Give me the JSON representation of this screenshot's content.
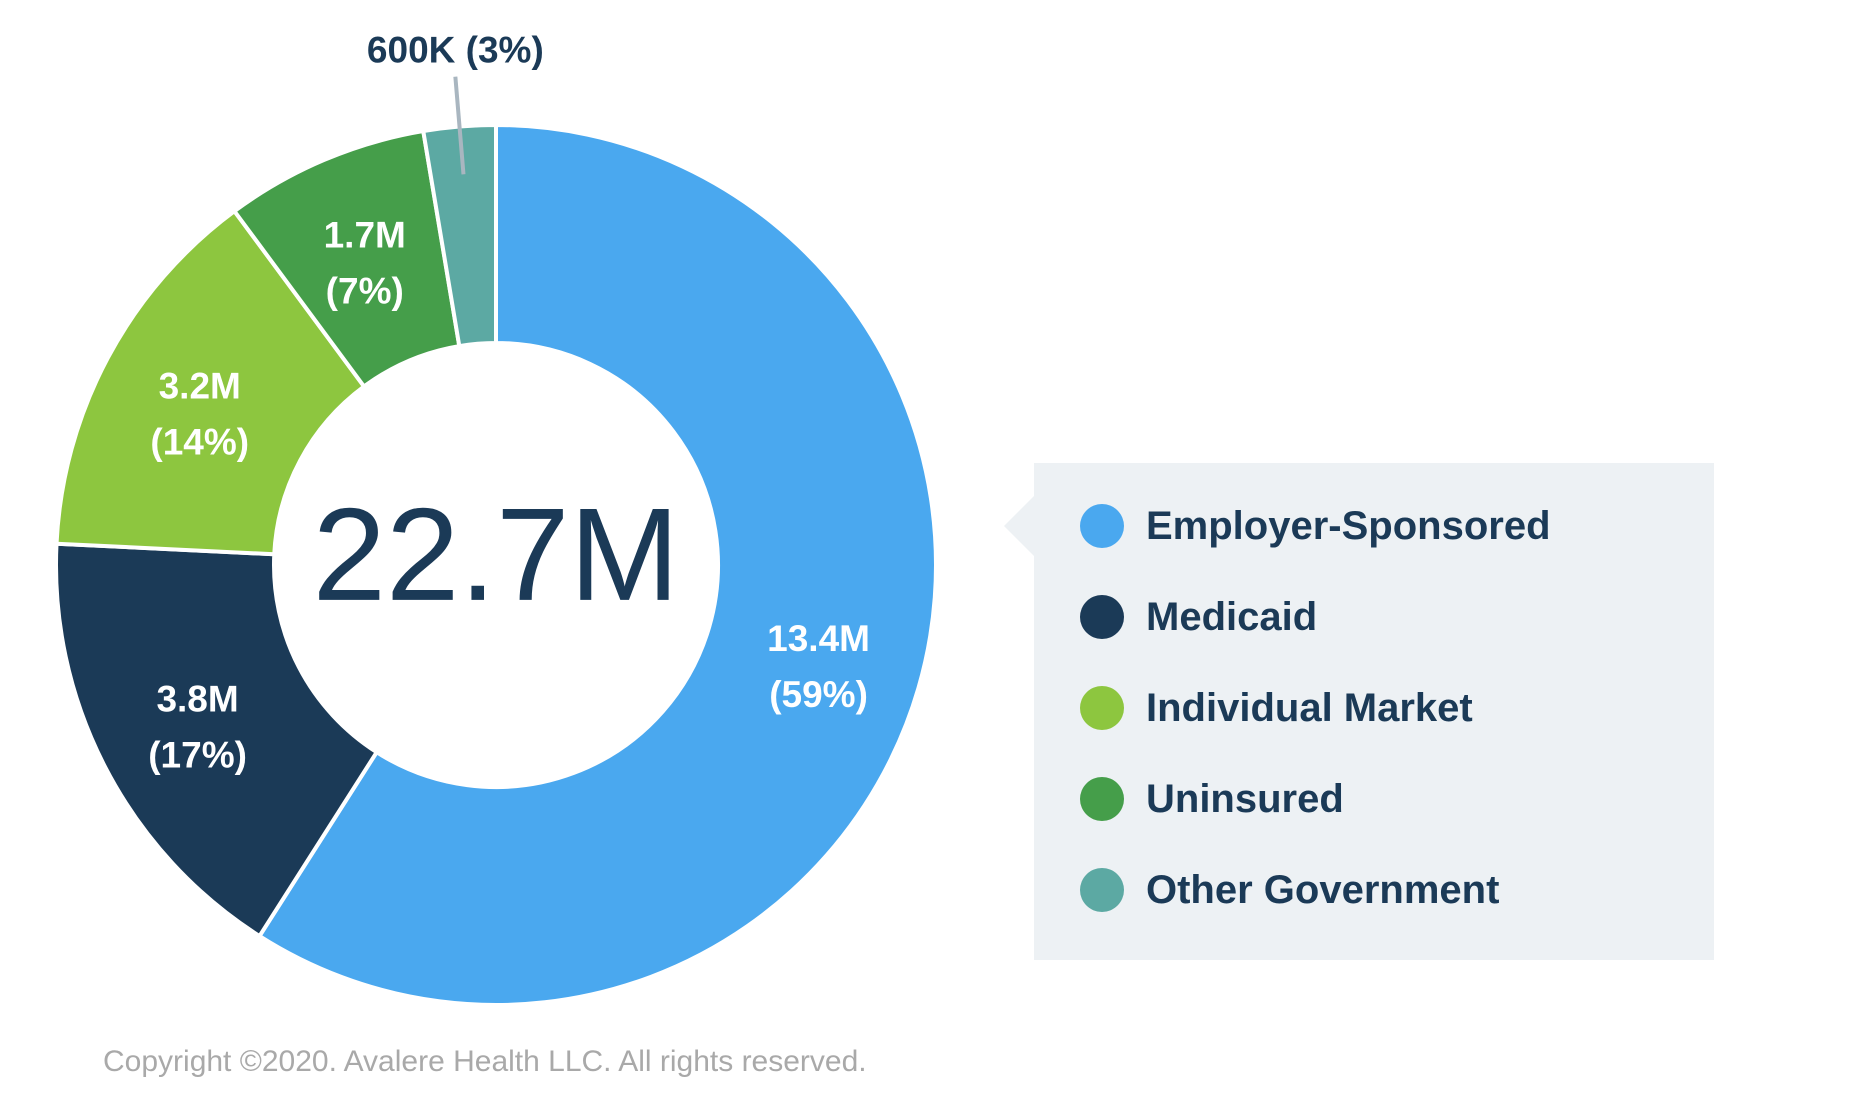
{
  "chart_data": {
    "type": "pie",
    "variant": "donut",
    "center_label": "22.7M",
    "slices": [
      {
        "name": "Employer-Sponsored",
        "value_label": "13.4M",
        "percent_label": "(59%)",
        "value": 13.4,
        "percent": 59,
        "color": "#4aa8ef"
      },
      {
        "name": "Medicaid",
        "value_label": "3.8M",
        "percent_label": "(17%)",
        "value": 3.8,
        "percent": 17,
        "color": "#1b3a57"
      },
      {
        "name": "Individual Market",
        "value_label": "3.2M",
        "percent_label": "(14%)",
        "value": 3.2,
        "percent": 14,
        "color": "#8dc63f"
      },
      {
        "name": "Uninsured",
        "value_label": "1.7M",
        "percent_label": "(7%)",
        "value": 1.7,
        "percent": 7,
        "color": "#459e4a"
      },
      {
        "name": "Other Government",
        "value_label": "600K (3%)",
        "percent_label": "",
        "value": 0.6,
        "percent": 3,
        "color": "#5ca9a3"
      }
    ],
    "legend_position": "right"
  },
  "legend": {
    "items": [
      {
        "label": "Employer-Sponsored",
        "color": "#4aa8ef"
      },
      {
        "label": "Medicaid",
        "color": "#1b3a57"
      },
      {
        "label": "Individual Market",
        "color": "#8dc63f"
      },
      {
        "label": "Uninsured",
        "color": "#459e4a"
      },
      {
        "label": "Other Government",
        "color": "#5ca9a3"
      }
    ]
  },
  "footer": {
    "copyright": "Copyright ©2020. Avalere Health LLC. All rights reserved."
  }
}
